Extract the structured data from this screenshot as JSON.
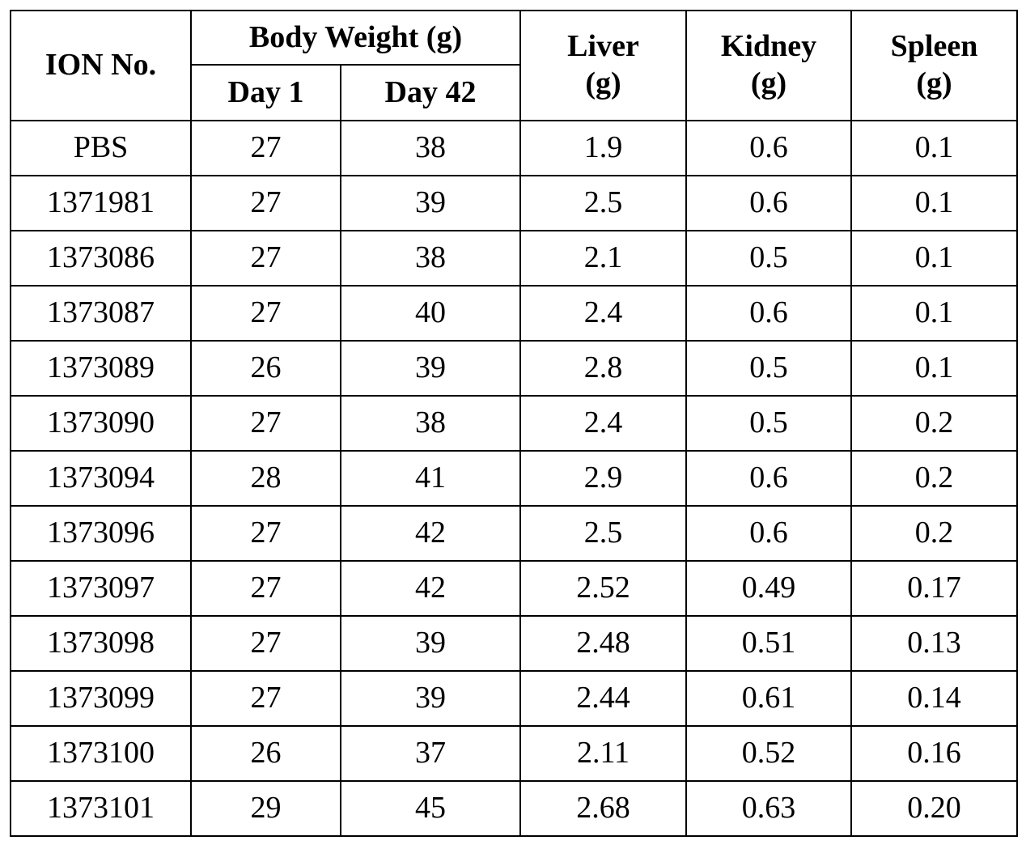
{
  "table": {
    "header": {
      "ion_no": "ION No.",
      "body_weight": "Body Weight (g)",
      "day1": "Day 1",
      "day42": "Day 42",
      "liver": "Liver\n(g)",
      "kidney": "Kidney\n(g)",
      "spleen": "Spleen\n(g)"
    },
    "rows": [
      [
        "PBS",
        "27",
        "38",
        "1.9",
        "0.6",
        "0.1"
      ],
      [
        "1371981",
        "27",
        "39",
        "2.5",
        "0.6",
        "0.1"
      ],
      [
        "1373086",
        "27",
        "38",
        "2.1",
        "0.5",
        "0.1"
      ],
      [
        "1373087",
        "27",
        "40",
        "2.4",
        "0.6",
        "0.1"
      ],
      [
        "1373089",
        "26",
        "39",
        "2.8",
        "0.5",
        "0.1"
      ],
      [
        "1373090",
        "27",
        "38",
        "2.4",
        "0.5",
        "0.2"
      ],
      [
        "1373094",
        "28",
        "41",
        "2.9",
        "0.6",
        "0.2"
      ],
      [
        "1373096",
        "27",
        "42",
        "2.5",
        "0.6",
        "0.2"
      ],
      [
        "1373097",
        "27",
        "42",
        "2.52",
        "0.49",
        "0.17"
      ],
      [
        "1373098",
        "27",
        "39",
        "2.48",
        "0.51",
        "0.13"
      ],
      [
        "1373099",
        "27",
        "39",
        "2.44",
        "0.61",
        "0.14"
      ],
      [
        "1373100",
        "26",
        "37",
        "2.11",
        "0.52",
        "0.16"
      ],
      [
        "1373101",
        "29",
        "45",
        "2.68",
        "0.63",
        "0.20"
      ]
    ]
  }
}
